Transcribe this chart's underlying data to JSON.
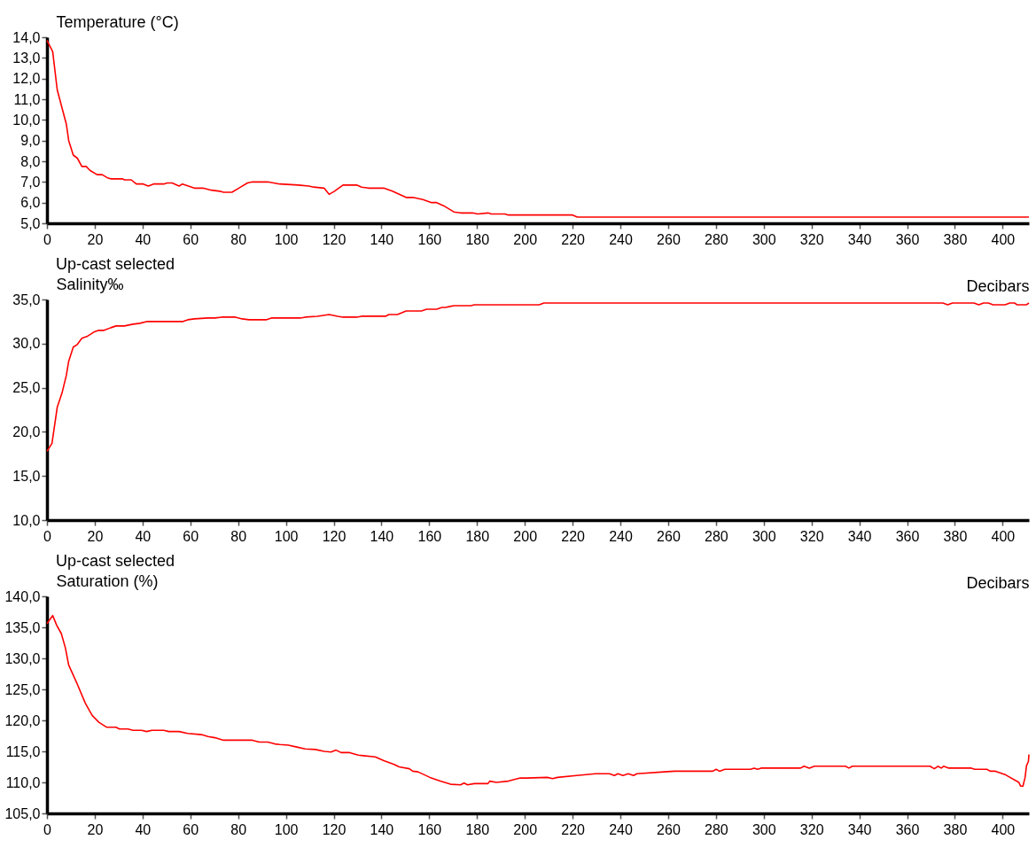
{
  "chart_data": [
    {
      "type": "line",
      "ylabel": "Temperature (°C)",
      "xlim": [
        0,
        411
      ],
      "xticks": [
        0,
        20,
        40,
        60,
        80,
        100,
        120,
        140,
        160,
        180,
        200,
        220,
        240,
        260,
        280,
        300,
        320,
        340,
        360,
        380,
        400
      ],
      "ylim": [
        5,
        14
      ],
      "yticks": [
        {
          "value": 5,
          "label": "5,0"
        },
        {
          "value": 6,
          "label": "6,0"
        },
        {
          "value": 7,
          "label": "7,0"
        },
        {
          "value": 8,
          "label": "8,0"
        },
        {
          "value": 9,
          "label": "9,0"
        },
        {
          "value": 10,
          "label": "10,0"
        },
        {
          "value": 11,
          "label": "11,0"
        },
        {
          "value": 12,
          "label": "12,0"
        },
        {
          "value": 13,
          "label": "13,0"
        },
        {
          "value": 14,
          "label": "14,0"
        }
      ],
      "series": [
        {
          "color": "#ff0000",
          "x": [
            0,
            2.4,
            4.3,
            8.1,
            9.1,
            11,
            12.7,
            14.6,
            16.4,
            18.1,
            21,
            23.1,
            25.3,
            26.7,
            31.7,
            32.4,
            35.3,
            37.4,
            40.3,
            42.4,
            44.6,
            48.9,
            50.3,
            52.4,
            55.3,
            56.7,
            61.7,
            65.3,
            68.9,
            72.4,
            73.9,
            77.4,
            80.3,
            83.9,
            86,
            92.4,
            97.4,
            105.3,
            109.6,
            111.7,
            116,
            118.1,
            120.3,
            123.9,
            129.6,
            131.7,
            134.6,
            141,
            144.6,
            150.3,
            153.1,
            157.4,
            161,
            163.1,
            166,
            170.3,
            173.1,
            178.1,
            180.3,
            184.6,
            186,
            191.7,
            193.1,
            220,
            222,
            411
          ],
          "values": [
            13.85,
            13.3,
            11.45,
            9.8,
            9.0,
            8.3,
            8.15,
            7.75,
            7.75,
            7.55,
            7.35,
            7.35,
            7.2,
            7.15,
            7.15,
            7.1,
            7.1,
            6.9,
            6.9,
            6.8,
            6.9,
            6.9,
            6.95,
            6.95,
            6.8,
            6.9,
            6.7,
            6.7,
            6.6,
            6.55,
            6.5,
            6.5,
            6.7,
            6.95,
            7.0,
            7.0,
            6.9,
            6.85,
            6.8,
            6.75,
            6.7,
            6.4,
            6.55,
            6.85,
            6.85,
            6.75,
            6.7,
            6.7,
            6.55,
            6.25,
            6.25,
            6.15,
            6.0,
            6.0,
            5.85,
            5.55,
            5.5,
            5.5,
            5.45,
            5.5,
            5.45,
            5.45,
            5.4,
            5.4,
            5.3,
            5.3
          ]
        }
      ]
    },
    {
      "type": "line",
      "title": "Up-cast selected",
      "xlabel": "Decibars",
      "ylabel": "Salinity‰",
      "xlim": [
        0,
        411
      ],
      "xticks": [
        0,
        20,
        40,
        60,
        80,
        100,
        120,
        140,
        160,
        180,
        200,
        220,
        240,
        260,
        280,
        300,
        320,
        340,
        360,
        380,
        400
      ],
      "ylim": [
        10,
        35
      ],
      "yticks": [
        {
          "value": 10,
          "label": "10,0"
        },
        {
          "value": 15,
          "label": "15,0"
        },
        {
          "value": 20,
          "label": "20,0"
        },
        {
          "value": 25,
          "label": "25,0"
        },
        {
          "value": 30,
          "label": "30,0"
        },
        {
          "value": 35,
          "label": "35,0"
        }
      ],
      "series": [
        {
          "color": "#ff0000",
          "x": [
            0,
            2.1,
            4.3,
            6.3,
            8.1,
            9.1,
            11,
            12.7,
            14.6,
            16.7,
            19.6,
            21.7,
            23.9,
            26.7,
            28.9,
            32.4,
            36,
            38.9,
            41.7,
            56.7,
            58.9,
            61.7,
            67.4,
            70.3,
            73.1,
            78.9,
            81.7,
            84.6,
            91.7,
            93.9,
            106,
            108.1,
            113.1,
            118.1,
            121.7,
            123.9,
            129.6,
            131.7,
            141.7,
            143.1,
            146.7,
            150.3,
            156.7,
            158.9,
            163.1,
            165.3,
            166.7,
            170.3,
            177.4,
            178.9,
            206,
            208,
            375,
            377,
            379,
            388,
            390,
            392,
            394,
            396,
            401,
            403,
            405,
            406,
            410,
            411
          ],
          "values": [
            17.8,
            18.7,
            22.8,
            24.4,
            26.4,
            28.0,
            29.6,
            29.9,
            30.6,
            30.8,
            31.3,
            31.5,
            31.5,
            31.8,
            32.0,
            32.0,
            32.2,
            32.3,
            32.5,
            32.5,
            32.7,
            32.8,
            32.9,
            32.9,
            33.0,
            33.0,
            32.8,
            32.7,
            32.7,
            32.9,
            32.9,
            33.0,
            33.1,
            33.3,
            33.1,
            33.0,
            33.0,
            33.1,
            33.1,
            33.3,
            33.3,
            33.7,
            33.7,
            33.9,
            33.9,
            34.1,
            34.1,
            34.3,
            34.3,
            34.4,
            34.4,
            34.6,
            34.6,
            34.4,
            34.6,
            34.6,
            34.4,
            34.6,
            34.6,
            34.4,
            34.4,
            34.6,
            34.6,
            34.4,
            34.4,
            34.6
          ]
        }
      ]
    },
    {
      "type": "line",
      "title": "Up-cast selected",
      "xlabel": "Decibars",
      "ylabel": "Saturation (%)",
      "xlim": [
        0,
        411
      ],
      "xticks": [
        0,
        20,
        40,
        60,
        80,
        100,
        120,
        140,
        160,
        180,
        200,
        220,
        240,
        260,
        280,
        300,
        320,
        340,
        360,
        380,
        400
      ],
      "ylim": [
        105,
        140
      ],
      "yticks": [
        {
          "value": 105,
          "label": "105,0"
        },
        {
          "value": 110,
          "label": "110,0"
        },
        {
          "value": 115,
          "label": "115,0"
        },
        {
          "value": 120,
          "label": "120,0"
        },
        {
          "value": 125,
          "label": "125,0"
        },
        {
          "value": 130,
          "label": "130,0"
        },
        {
          "value": 135,
          "label": "135,0"
        },
        {
          "value": 140,
          "label": "140,0"
        }
      ],
      "series": [
        {
          "color": "#ff0000",
          "x": [
            0,
            2.4,
            4.1,
            6,
            7.7,
            9.1,
            12.4,
            16,
            18.9,
            21.7,
            24.9,
            28.9,
            30.3,
            33.9,
            36,
            39.6,
            41.7,
            43.9,
            48.9,
            51,
            55.3,
            58.9,
            64.6,
            67.4,
            70.3,
            73.9,
            86,
            88.9,
            92.4,
            95.3,
            97.4,
            101,
            104.6,
            108.1,
            112.4,
            116,
            118.9,
            121,
            123.1,
            126.7,
            130.3,
            132.4,
            137.4,
            141,
            145.3,
            147.4,
            151.7,
            153.1,
            155.3,
            160.3,
            164.6,
            168.9,
            173.1,
            174.6,
            176,
            178.9,
            184.6,
            185.3,
            188.1,
            193.1,
            198.1,
            200.7,
            209.4,
            211.6,
            213.7,
            221.7,
            229.6,
            235.4,
            237.5,
            239,
            241.1,
            243.3,
            245.5,
            246.9,
            258.4,
            262.8,
            278.7,
            280.1,
            281.5,
            283.7,
            294.5,
            296,
            297.4,
            298.9,
            315.4,
            316.9,
            319.1,
            321.2,
            334.2,
            335.7,
            337.1,
            369.6,
            371.4,
            372.9,
            374.3,
            375.3,
            377.5,
            386.9,
            388.3,
            393.4,
            394.8,
            397,
            401.3,
            406.8,
            407.5,
            408.5,
            409.4,
            410,
            410.8,
            411
          ],
          "values": [
            135.6,
            136.9,
            135.3,
            134.0,
            131.7,
            128.9,
            126.1,
            122.8,
            120.8,
            119.7,
            118.9,
            118.9,
            118.6,
            118.6,
            118.4,
            118.4,
            118.2,
            118.4,
            118.4,
            118.2,
            118.2,
            117.9,
            117.7,
            117.4,
            117.2,
            116.8,
            116.8,
            116.5,
            116.5,
            116.2,
            116.1,
            116.0,
            115.7,
            115.4,
            115.3,
            115.0,
            114.9,
            115.2,
            114.8,
            114.8,
            114.4,
            114.3,
            114.1,
            113.5,
            112.9,
            112.5,
            112.2,
            111.8,
            111.7,
            110.8,
            110.2,
            109.7,
            109.6,
            109.9,
            109.6,
            109.8,
            109.8,
            110.2,
            110.0,
            110.2,
            110.7,
            110.7,
            110.8,
            110.6,
            110.8,
            111.1,
            111.4,
            111.4,
            111.1,
            111.4,
            111.1,
            111.4,
            111.1,
            111.4,
            111.7,
            111.8,
            111.8,
            112.1,
            111.8,
            112.1,
            112.1,
            112.3,
            112.1,
            112.3,
            112.3,
            112.6,
            112.3,
            112.6,
            112.6,
            112.3,
            112.6,
            112.6,
            112.2,
            112.6,
            112.3,
            112.6,
            112.3,
            112.3,
            112.1,
            112.1,
            111.8,
            111.8,
            111.2,
            110.0,
            109.4,
            109.4,
            110.8,
            112.7,
            113.4,
            114.5
          ]
        }
      ]
    }
  ]
}
